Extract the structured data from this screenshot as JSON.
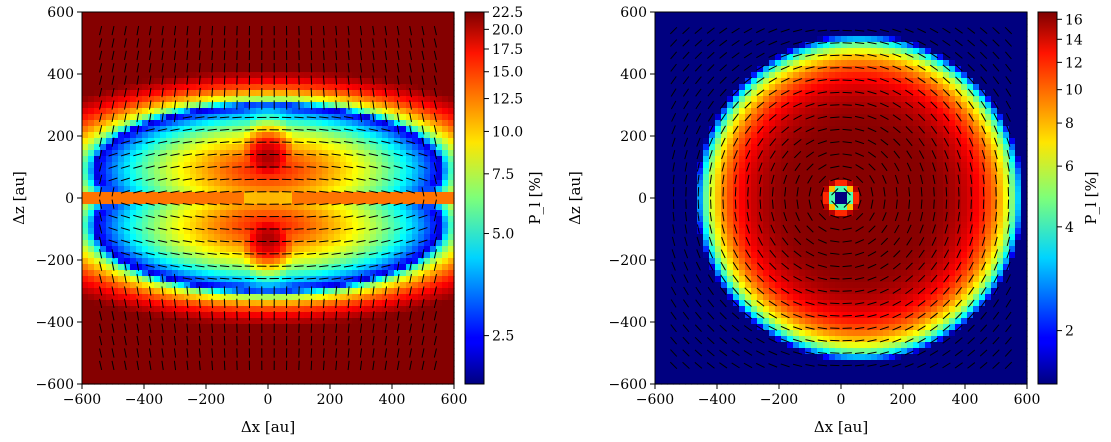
{
  "chart_data": [
    {
      "type": "heatmap",
      "title": "",
      "xlabel": "Δx [au]",
      "ylabel": "Δz [au]",
      "xlim": [
        -600,
        600
      ],
      "ylim": [
        -600,
        600
      ],
      "xticks": [
        -600,
        -400,
        -200,
        0,
        200,
        400,
        600
      ],
      "yticks": [
        -600,
        -400,
        -200,
        0,
        200,
        400,
        600
      ],
      "colorbar": {
        "label": "P_l [%]",
        "scale": "log",
        "range": [
          1.8,
          22.5
        ],
        "ticks": [
          2.5,
          5.0,
          7.5,
          10.0,
          12.5,
          15.0,
          17.5,
          20.0,
          22.5
        ],
        "tick_labels": [
          "2.5",
          "5.0",
          "7.5",
          "10.0",
          "12.5",
          "15.0",
          "17.5",
          "20.0",
          "22.5"
        ]
      },
      "colormap": "jet",
      "vectors": "polarization angle segments",
      "grid": false
    },
    {
      "type": "heatmap",
      "title": "",
      "xlabel": "Δx [au]",
      "ylabel": "Δz [au]",
      "xlim": [
        -600,
        600
      ],
      "ylim": [
        -600,
        600
      ],
      "xticks": [
        -600,
        -400,
        -200,
        0,
        200,
        400,
        600
      ],
      "yticks": [
        -600,
        -400,
        -200,
        0,
        200,
        400,
        600
      ],
      "colorbar": {
        "label": "P_l [%]",
        "scale": "log",
        "range": [
          1.4,
          16.8
        ],
        "ticks": [
          2,
          4,
          6,
          8,
          10,
          12,
          14,
          16
        ],
        "tick_labels": [
          "2",
          "4",
          "6",
          "8",
          "10",
          "12",
          "14",
          "16"
        ]
      },
      "colormap": "jet",
      "vectors": "polarization angle segments",
      "grid": false
    }
  ]
}
